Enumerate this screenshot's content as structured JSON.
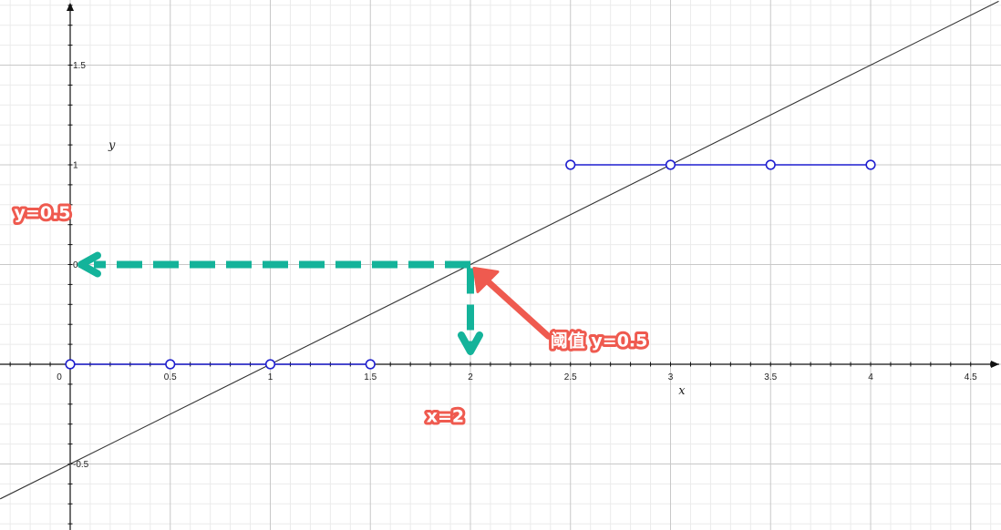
{
  "chart_data": {
    "type": "line",
    "title": "",
    "xlabel": "x",
    "ylabel": "y",
    "xlim": [
      -0.35,
      4.64
    ],
    "ylim": [
      -0.82,
      1.82
    ],
    "grid": true,
    "x_ticks": [
      {
        "value": 0,
        "label": "0"
      },
      {
        "value": 0.5,
        "label": "0.5"
      },
      {
        "value": 1,
        "label": "1"
      },
      {
        "value": 1.5,
        "label": "1.5"
      },
      {
        "value": 2,
        "label": "2"
      },
      {
        "value": 2.5,
        "label": "2.5"
      },
      {
        "value": 3,
        "label": "3"
      },
      {
        "value": 3.5,
        "label": "3.5"
      },
      {
        "value": 4,
        "label": "4"
      },
      {
        "value": 4.5,
        "label": "4.5"
      }
    ],
    "y_ticks": [
      {
        "value": 1.5,
        "label": "1.5"
      },
      {
        "value": 1,
        "label": "1"
      },
      {
        "value": 0.5,
        "label": "0.5"
      },
      {
        "value": -0.5,
        "label": "-0.5"
      }
    ],
    "series": [
      {
        "kind": "line",
        "x": [
          -0.35,
          4.64
        ],
        "y": [
          -0.675,
          1.82
        ],
        "color": "#333333"
      },
      {
        "kind": "segment_points",
        "x": [
          0,
          0.5,
          1,
          1.5
        ],
        "y": [
          0,
          0,
          0,
          0
        ],
        "color": "#1f1fd0"
      },
      {
        "kind": "segment_points",
        "x": [
          2.5,
          3,
          3.5,
          4
        ],
        "y": [
          1,
          1,
          1,
          1
        ],
        "color": "#1f1fd0"
      }
    ],
    "annotations": [
      {
        "text": "y=0.5",
        "x": -0.28,
        "y": 0.73,
        "color": "#ef5a4f"
      },
      {
        "text": "阈值 y=0.5",
        "x": 2.4,
        "y": 0.09,
        "color": "#ef5a4f"
      },
      {
        "text": "x=2",
        "x": 1.78,
        "y": -0.29,
        "color": "#ef5a4f"
      }
    ],
    "threshold_point": {
      "x": 2,
      "y": 0.5
    },
    "guide_color": "#14b39a",
    "pointer_color": "#ef5a4f"
  }
}
